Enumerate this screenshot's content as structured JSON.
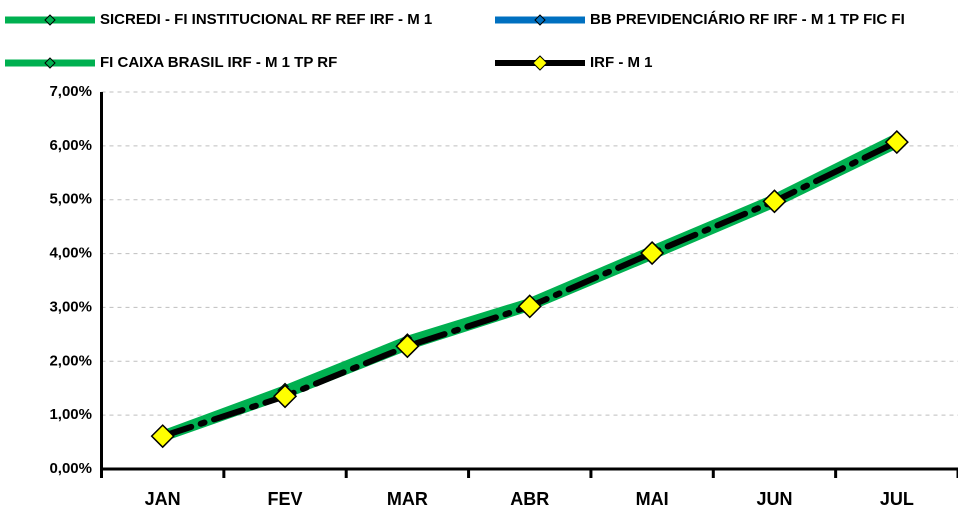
{
  "chart_data": {
    "type": "line",
    "categories": [
      "JAN",
      "FEV",
      "MAR",
      "ABR",
      "MAI",
      "JUN",
      "JUL"
    ],
    "series": [
      {
        "name": "SICREDI - FI INSTITUCIONAL RF REF IRF - M 1",
        "color": "#00b050",
        "marker_color": "#00b050",
        "values": [
          0.62,
          1.46,
          2.38,
          3.08,
          4.05,
          5.01,
          6.14
        ]
      },
      {
        "name": "BB PREVIDENCIÁRIO RF IRF - M 1 TP FIC FI",
        "color": "#0070c0",
        "marker_color": "#0070c0",
        "values": [
          0.61,
          1.42,
          2.33,
          3.05,
          4.0,
          4.97,
          6.08
        ]
      },
      {
        "name": "FI CAIXA BRASIL IRF - M 1 TP RF",
        "color": "#00b050",
        "marker_color": "#00b050",
        "values": [
          0.6,
          1.4,
          2.3,
          3.03,
          3.98,
          4.95,
          6.05
        ]
      },
      {
        "name": "IRF - M 1",
        "color": "#000000",
        "marker_color": "#ffff00",
        "values": [
          0.61,
          1.35,
          2.28,
          3.02,
          4.01,
          4.97,
          6.07
        ]
      }
    ],
    "ylim": [
      0,
      7
    ],
    "yticks": [
      {
        "value": 0,
        "label": "0,00%"
      },
      {
        "value": 1,
        "label": "1,00%"
      },
      {
        "value": 2,
        "label": "2,00%"
      },
      {
        "value": 3,
        "label": "3,00%"
      },
      {
        "value": 4,
        "label": "4,00%"
      },
      {
        "value": 5,
        "label": "5,00%"
      },
      {
        "value": 6,
        "label": "6,00%"
      },
      {
        "value": 7,
        "label": "7,00%"
      }
    ],
    "grid": true
  }
}
